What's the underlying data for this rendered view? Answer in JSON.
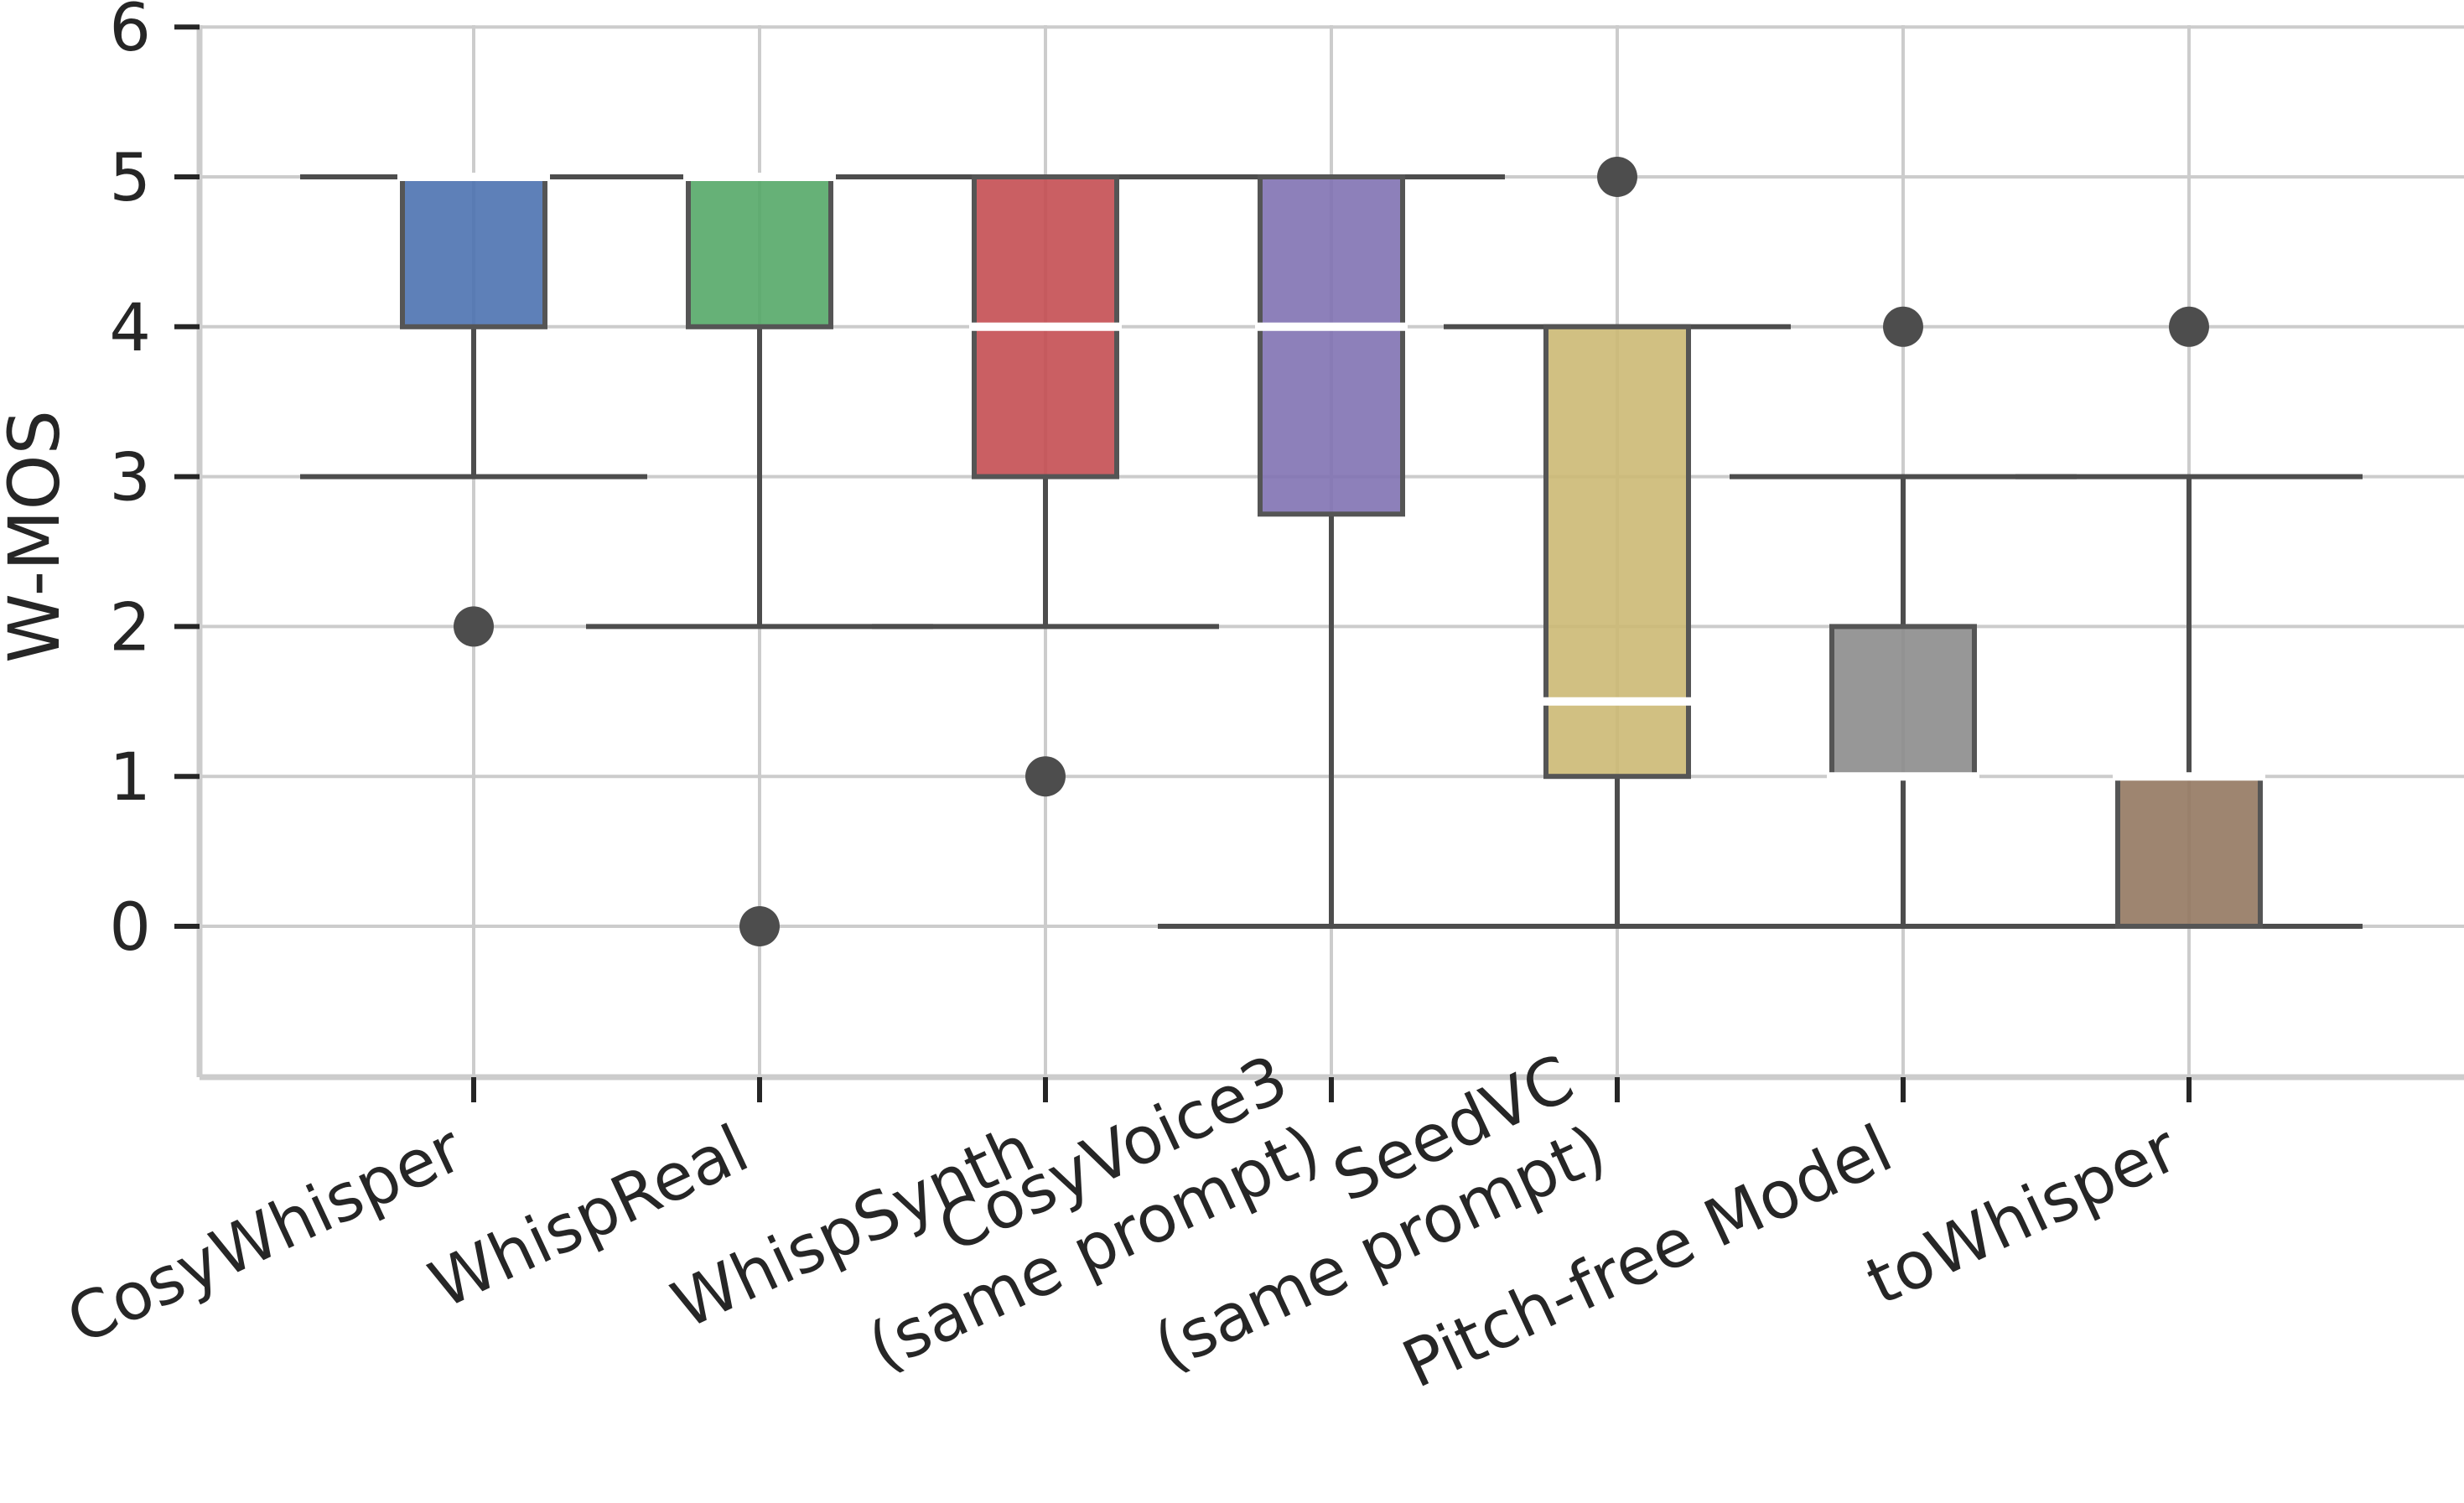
{
  "chart_data": {
    "type": "boxplot",
    "title": "",
    "xlabel": "",
    "ylabel": "W-MOS",
    "ylim": [
      -1,
      6
    ],
    "yticks": [
      0,
      1,
      2,
      3,
      4,
      5,
      6
    ],
    "grid": true,
    "series": [
      {
        "name": "CosyWhisper",
        "label_lines": [
          "CosyWhisper"
        ],
        "color": "#4c72b0",
        "q1": 4,
        "median": 5,
        "q3": 5,
        "whisker_low": 3,
        "whisker_high": 5,
        "outliers": [
          2
        ]
      },
      {
        "name": "WhispReal",
        "label_lines": [
          "WhispReal"
        ],
        "color": "#55a868",
        "q1": 4,
        "median": 5,
        "q3": 5,
        "whisker_low": 2,
        "whisker_high": 5,
        "outliers": [
          0
        ]
      },
      {
        "name": "WhispSynth",
        "label_lines": [
          "WhispSynth"
        ],
        "color": "#c44e52",
        "q1": 3,
        "median": 4,
        "q3": 5,
        "whisker_low": 2,
        "whisker_high": 5,
        "outliers": [
          1
        ]
      },
      {
        "name": "CosyVoice3 (same prompt)",
        "label_lines": [
          "CosyVoice3",
          "(same prompt)"
        ],
        "color": "#8172b3",
        "q1": 2.75,
        "median": 4,
        "q3": 5,
        "whisker_low": 0,
        "whisker_high": 5,
        "outliers": []
      },
      {
        "name": "SeedVC (same prompt)",
        "label_lines": [
          "SeedVC",
          "(same prompt)"
        ],
        "color": "#ccb974",
        "q1": 1,
        "median": 1.5,
        "q3": 4,
        "whisker_low": 0,
        "whisker_high": 4,
        "outliers": [
          5
        ]
      },
      {
        "name": "Pitch-free Model",
        "label_lines": [
          "Pitch-free Model"
        ],
        "color": "#8c8c8c",
        "q1": 1,
        "median": 1,
        "q3": 2,
        "whisker_low": 0,
        "whisker_high": 3,
        "outliers": [
          4
        ]
      },
      {
        "name": "toWhisper",
        "label_lines": [
          "toWhisper"
        ],
        "color": "#937860",
        "q1": 0,
        "median": 1,
        "q3": 1,
        "whisker_low": 0,
        "whisker_high": 3,
        "outliers": [
          4
        ]
      }
    ]
  }
}
